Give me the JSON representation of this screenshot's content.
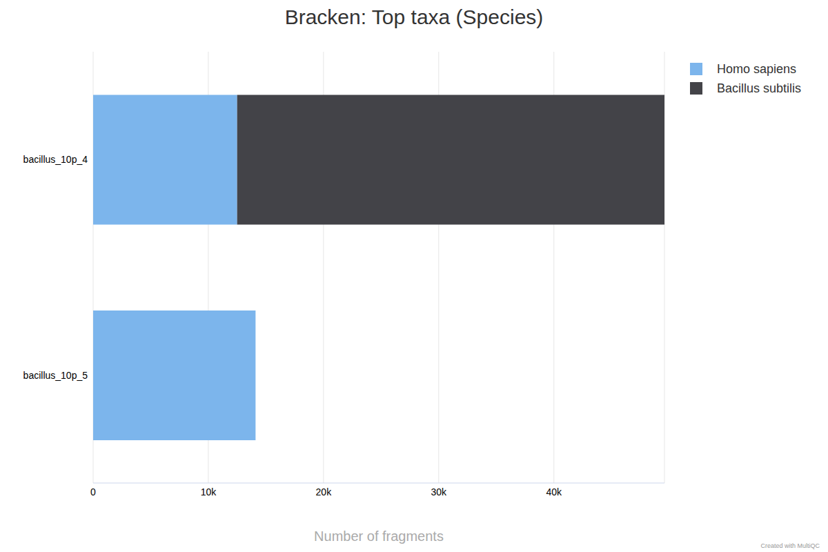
{
  "chart_data": {
    "type": "bar",
    "title": "Bracken: Top taxa (Species)",
    "orientation": "horizontal",
    "stacked": true,
    "categories": [
      "bacillus_10p_4",
      "bacillus_10p_5"
    ],
    "series": [
      {
        "name": "Homo sapiens",
        "color": "#7cb5ec",
        "values": [
          12500,
          14100
        ]
      },
      {
        "name": "Bacillus subtilis",
        "color": "#434348",
        "values": [
          37100,
          0
        ]
      }
    ],
    "x_label": "Number of fragments",
    "xlim": [
      0,
      49600
    ],
    "xticks": [
      0,
      {
        "value": 10000,
        "label": "10k"
      },
      {
        "value": 20000,
        "label": "20k"
      },
      {
        "value": 30000,
        "label": "30k"
      },
      {
        "value": 40000,
        "label": "40k"
      }
    ],
    "grid": true,
    "legend": "top-right",
    "annotations": [
      "Created with MultiQC"
    ]
  }
}
